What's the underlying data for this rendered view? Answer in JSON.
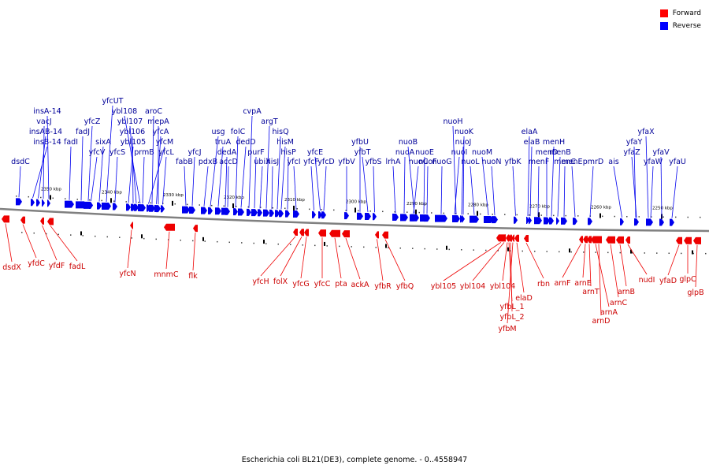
{
  "legend": {
    "forward_label": "Forward",
    "reverse_label": "Reverse",
    "forward_color": "#ff0000",
    "reverse_color": "#0000ff"
  },
  "caption": "Escherichia coli BL21(DE3), complete genome. - 0..4558947",
  "colors": {
    "forward_fill": "#ee0000",
    "reverse_fill": "#0000ee",
    "forward_text": "#cc0000",
    "reverse_text": "#000099",
    "backbone": "#808080"
  },
  "ruler_labels": [
    "2350 kbp",
    "2340 kbp",
    "2330 kbp",
    "2320 kbp",
    "2310 kbp",
    "2300 kbp",
    "2290 kbp",
    "2280 kbp",
    "2270 kbp",
    "2260 kbp",
    "2250 kbp"
  ],
  "reverse_genes": [
    "dsdC",
    "insB-14",
    "insAB-14",
    "vacJ",
    "insA-14",
    "fadI",
    "fadJ",
    "yfcZ",
    "yfcV",
    "sixA",
    "yfcS",
    "ybl105",
    "ybl106",
    "ybl107",
    "ybl108",
    "yfcUT",
    "prmB",
    "aroC",
    "yfcM",
    "yfcA",
    "mepA",
    "yfcL",
    "fabB",
    "yfcJ",
    "pdxB",
    "usg",
    "truA",
    "dedA",
    "accD",
    "folC",
    "dedD",
    "cvpA",
    "purF",
    "ubiX",
    "argT",
    "hisJ",
    "hisQ",
    "hisM",
    "hisP",
    "yfcI",
    "yfcF",
    "yfcE",
    "yfcD",
    "yfbV",
    "yfbU",
    "yfbT",
    "yfbS",
    "lrhA",
    "nuoA",
    "nuoB",
    "nuoC",
    "nuoE",
    "nuoF",
    "nuoG",
    "nuoH",
    "nuoI",
    "nuoJ",
    "nuoK",
    "nuoL",
    "nuoM",
    "nuoN",
    "yfbK",
    "elaA",
    "elaB",
    "menF",
    "menD",
    "menH",
    "menB",
    "menC",
    "menE",
    "pmrD",
    "ais",
    "yfaZ",
    "yfaY",
    "yfaX",
    "yfaW",
    "yfaV",
    "yfaU"
  ],
  "forward_genes": [
    "dsdX",
    "yfdC",
    "yfdF",
    "fadL",
    "yfcN",
    "mnmC",
    "flk",
    "yfcH",
    "folX",
    "yfcG",
    "yfcC",
    "pta",
    "ackA",
    "yfbR",
    "yfbQ",
    "ybl105",
    "ybl104",
    "ybl104",
    "yfbL_1",
    "yfbL_2",
    "yfbM",
    "elaD",
    "rbn",
    "arnF",
    "arnE",
    "arnT",
    "arnA",
    "arnD",
    "arnC",
    "arnB",
    "nudI",
    "yfaD",
    "glpC",
    "glpB"
  ]
}
